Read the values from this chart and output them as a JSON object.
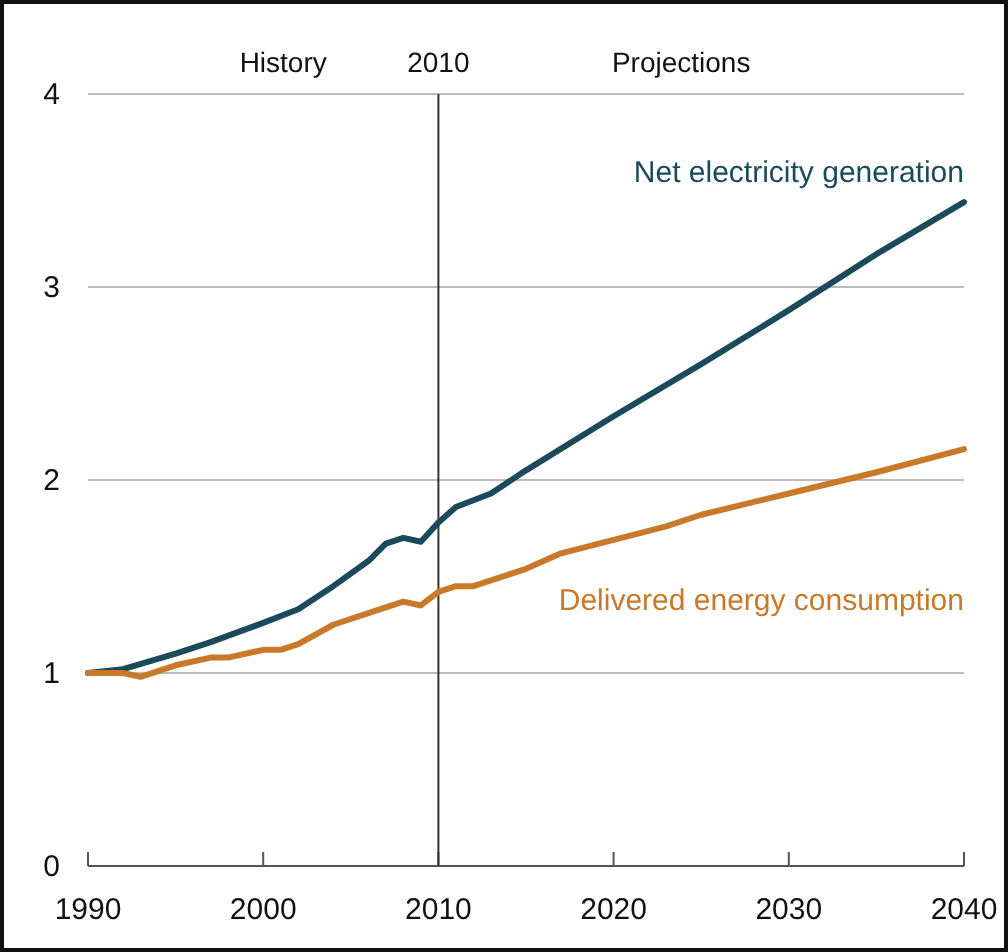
{
  "chart_data": {
    "type": "line",
    "xlim": [
      1990,
      2040
    ],
    "xticks": [
      1990,
      2000,
      2010,
      2020,
      2030,
      2040
    ],
    "ylim": [
      0,
      4
    ],
    "yticks": [
      0,
      1,
      2,
      3,
      4
    ],
    "grid": "y",
    "legend": false,
    "ref_lines": [
      {
        "axis": "x",
        "value": 2010,
        "label": "2010",
        "color": "#333333"
      }
    ],
    "annotations": [
      "History",
      "Projections"
    ],
    "series": [
      {
        "name": "Net electricity generation",
        "color": "#1b4a5a",
        "x": [
          1990,
          1992,
          1995,
          1997,
          2000,
          2002,
          2004,
          2006,
          2007,
          2008,
          2009,
          2010,
          2011,
          2013,
          2015,
          2020,
          2025,
          2030,
          2035,
          2040
        ],
        "values": [
          1.0,
          1.02,
          1.1,
          1.16,
          1.26,
          1.33,
          1.45,
          1.58,
          1.67,
          1.7,
          1.68,
          1.78,
          1.86,
          1.93,
          2.05,
          2.33,
          2.6,
          2.88,
          3.17,
          3.44
        ]
      },
      {
        "name": "Delivered energy consumption",
        "color": "#c8792a",
        "x": [
          1990,
          1992,
          1993,
          1995,
          1997,
          1998,
          2000,
          2001,
          2002,
          2004,
          2006,
          2008,
          2009,
          2010,
          2011,
          2012,
          2015,
          2017,
          2020,
          2023,
          2025,
          2030,
          2035,
          2040
        ],
        "values": [
          1.0,
          1.0,
          0.98,
          1.04,
          1.08,
          1.08,
          1.12,
          1.12,
          1.15,
          1.25,
          1.31,
          1.37,
          1.35,
          1.42,
          1.45,
          1.45,
          1.54,
          1.62,
          1.69,
          1.76,
          1.82,
          1.93,
          2.04,
          2.16
        ]
      }
    ]
  }
}
